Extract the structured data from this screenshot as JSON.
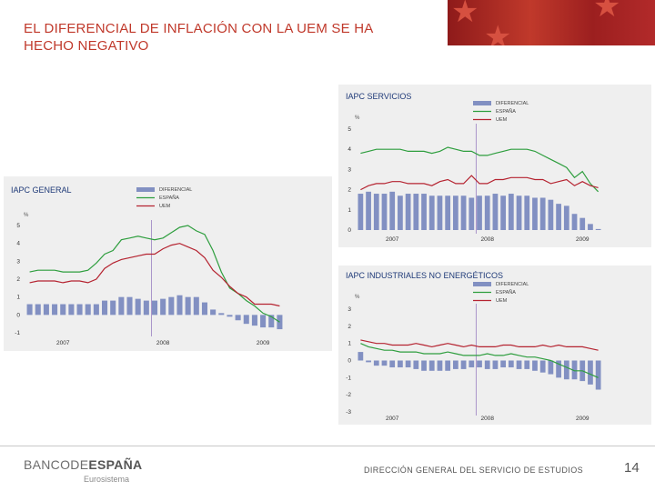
{
  "title": "EL DIFERENCIAL DE INFLACIÓN CON LA UEM SE HA HECHO NEGATIVO",
  "footer": {
    "logo_prefix": "BANCODE",
    "logo_bold": "ESPAÑA",
    "logo_sub": "Eurosistema",
    "department": "DIRECCIÓN GENERAL DEL SERVICIO DE ESTUDIOS",
    "page_number": "14"
  },
  "colors": {
    "title": "#c0392b",
    "bar": "#8290c2",
    "spain": "#2e9e3e",
    "uem": "#b52330"
  },
  "chart_data": [
    {
      "id": "general",
      "type": "bar+line",
      "title": "IAPC GENERAL",
      "unit": "%",
      "legend": [
        "DIFERENCIAL",
        "ESPAÑA",
        "UEM"
      ],
      "ylim": [
        -1,
        5
      ],
      "yticks": [
        "5",
        "4",
        "3",
        "2",
        "1",
        "0",
        "-1"
      ],
      "xticks": [
        {
          "label": "2007",
          "index": 4
        },
        {
          "label": "2008",
          "index": 16
        },
        {
          "label": "2009",
          "index": 28
        }
      ],
      "diferencial": [
        0.6,
        0.6,
        0.6,
        0.6,
        0.6,
        0.6,
        0.6,
        0.6,
        0.6,
        0.8,
        0.8,
        1.0,
        1.0,
        0.9,
        0.8,
        0.8,
        0.9,
        1.0,
        1.1,
        1.0,
        1.0,
        0.7,
        0.3,
        0.1,
        -0.1,
        -0.3,
        -0.5,
        -0.6,
        -0.7,
        -0.7,
        -0.8
      ],
      "espana": [
        2.4,
        2.5,
        2.5,
        2.5,
        2.4,
        2.4,
        2.4,
        2.5,
        2.9,
        3.4,
        3.6,
        4.2,
        4.3,
        4.4,
        4.3,
        4.2,
        4.3,
        4.6,
        4.9,
        5.0,
        4.7,
        4.5,
        3.6,
        2.4,
        1.5,
        1.2,
        0.8,
        0.5,
        0.1,
        -0.1,
        -0.4
      ],
      "uem": [
        1.8,
        1.9,
        1.9,
        1.9,
        1.8,
        1.9,
        1.9,
        1.8,
        2.0,
        2.6,
        2.9,
        3.1,
        3.2,
        3.3,
        3.4,
        3.4,
        3.7,
        3.9,
        4.0,
        3.8,
        3.6,
        3.2,
        2.5,
        2.1,
        1.6,
        1.2,
        1.0,
        0.6,
        0.6,
        0.6,
        0.5
      ]
    },
    {
      "id": "servicios",
      "type": "bar+line",
      "title": "IAPC SERVICIOS",
      "unit": "%",
      "legend": [
        "DIFERENCIAL",
        "ESPAÑA",
        "UEM"
      ],
      "ylim": [
        0,
        5
      ],
      "yticks": [
        "5",
        "4",
        "3",
        "2",
        "1",
        "0"
      ],
      "xticks": [
        {
          "label": "2007",
          "index": 4
        },
        {
          "label": "2008",
          "index": 16
        },
        {
          "label": "2009",
          "index": 28
        }
      ],
      "diferencial": [
        1.8,
        1.9,
        1.8,
        1.8,
        1.9,
        1.7,
        1.8,
        1.8,
        1.8,
        1.7,
        1.7,
        1.7,
        1.7,
        1.7,
        1.6,
        1.7,
        1.7,
        1.8,
        1.7,
        1.8,
        1.7,
        1.7,
        1.6,
        1.6,
        1.5,
        1.3,
        1.2,
        0.8,
        0.6,
        0.3,
        0.05
      ],
      "espana": [
        3.8,
        3.9,
        4.0,
        4.0,
        4.0,
        4.0,
        3.9,
        3.9,
        3.9,
        3.8,
        3.9,
        4.1,
        4.0,
        3.9,
        3.9,
        3.7,
        3.7,
        3.8,
        3.9,
        4.0,
        4.0,
        4.0,
        3.9,
        3.7,
        3.5,
        3.3,
        3.1,
        2.6,
        2.9,
        2.3,
        1.9
      ],
      "uem": [
        2.0,
        2.2,
        2.3,
        2.3,
        2.4,
        2.4,
        2.3,
        2.3,
        2.3,
        2.2,
        2.4,
        2.5,
        2.3,
        2.3,
        2.7,
        2.3,
        2.3,
        2.5,
        2.5,
        2.6,
        2.6,
        2.6,
        2.5,
        2.5,
        2.3,
        2.4,
        2.5,
        2.2,
        2.4,
        2.2,
        2.1
      ]
    },
    {
      "id": "industriales",
      "type": "bar+line",
      "title": "IAPC INDUSTRIALES NO ENERGÉTICOS",
      "unit": "%",
      "legend": [
        "DIFERENCIAL",
        "ESPAÑA",
        "UEM"
      ],
      "ylim": [
        -3,
        3
      ],
      "yticks": [
        "3",
        "2",
        "1",
        "0",
        "-1",
        "-2",
        "-3"
      ],
      "xticks": [
        {
          "label": "2007",
          "index": 4
        },
        {
          "label": "2008",
          "index": 16
        },
        {
          "label": "2009",
          "index": 28
        }
      ],
      "diferencial": [
        0.5,
        -0.1,
        -0.3,
        -0.3,
        -0.4,
        -0.4,
        -0.4,
        -0.5,
        -0.6,
        -0.6,
        -0.6,
        -0.6,
        -0.5,
        -0.5,
        -0.4,
        -0.4,
        -0.5,
        -0.5,
        -0.4,
        -0.4,
        -0.5,
        -0.5,
        -0.6,
        -0.7,
        -0.8,
        -1.0,
        -1.1,
        -1.1,
        -1.2,
        -1.4,
        -1.7
      ],
      "espana": [
        1.0,
        0.8,
        0.7,
        0.6,
        0.6,
        0.5,
        0.5,
        0.5,
        0.4,
        0.4,
        0.4,
        0.5,
        0.4,
        0.3,
        0.3,
        0.3,
        0.4,
        0.3,
        0.3,
        0.4,
        0.3,
        0.2,
        0.2,
        0.1,
        0.0,
        -0.2,
        -0.4,
        -0.6,
        -0.6,
        -0.8,
        -1.0
      ],
      "uem": [
        1.2,
        1.1,
        1.0,
        1.0,
        0.9,
        0.9,
        0.9,
        1.0,
        0.9,
        0.8,
        0.9,
        1.0,
        0.9,
        0.8,
        0.9,
        0.8,
        0.8,
        0.8,
        0.9,
        0.9,
        0.8,
        0.8,
        0.8,
        0.9,
        0.8,
        0.9,
        0.8,
        0.8,
        0.8,
        0.7,
        0.6
      ]
    }
  ]
}
